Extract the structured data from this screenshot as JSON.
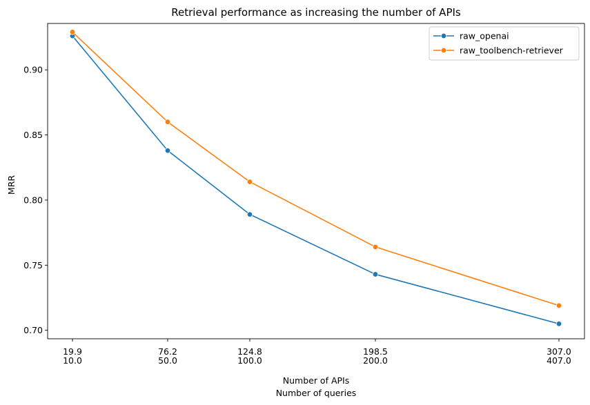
{
  "chart_data": {
    "type": "line",
    "title": "Retrieval performance as increasing the number of APIs",
    "xlabel": [
      "Number of APIs",
      "Number of queries"
    ],
    "ylabel": "MRR",
    "x_tick_labels": [
      [
        "19.9",
        "10.0"
      ],
      [
        "76.2",
        "50.0"
      ],
      [
        "124.8",
        "100.0"
      ],
      [
        "198.5",
        "200.0"
      ],
      [
        "307.0",
        "407.0"
      ]
    ],
    "x": [
      10,
      50,
      100,
      200,
      407
    ],
    "y_ticks": [
      "0.70",
      "0.75",
      "0.80",
      "0.85",
      "0.90"
    ],
    "y_tick_values": [
      0.7,
      0.75,
      0.8,
      0.85,
      0.9
    ],
    "ylim": [
      0.6935,
      0.9356
    ],
    "grid": false,
    "legend_position": "top-right",
    "series": [
      {
        "name": "raw_openai",
        "color": "#1f77b4",
        "values": [
          0.926,
          0.838,
          0.789,
          0.743,
          0.705
        ]
      },
      {
        "name": "raw_toolbench-retriever",
        "color": "#ff7f0e",
        "values": [
          0.929,
          0.86,
          0.814,
          0.764,
          0.719
        ]
      }
    ]
  }
}
